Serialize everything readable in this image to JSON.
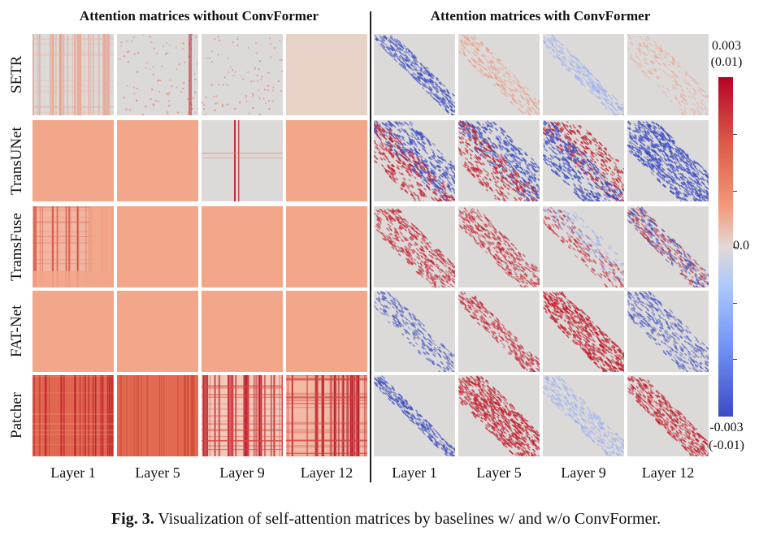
{
  "titles": {
    "left": "Attention matrices without ConvFormer",
    "right": "Attention matrices with ConvFormer"
  },
  "models": [
    "SETR",
    "TransUNet",
    "TramsFuse",
    "FAT-Net",
    "Patcher"
  ],
  "layers": [
    "Layer 1",
    "Layer 5",
    "Layer 9",
    "Layer 12"
  ],
  "colorbar": {
    "max_label": "0.003",
    "max_alt_label": "(0.01)",
    "mid_label": "0.0",
    "min_label": "-0.003",
    "min_alt_label": "(-0.01)"
  },
  "caption": {
    "label": "Fig. 3.",
    "text": "Visualization of self-attention matrices by baselines w/ and w/o ConvFormer."
  },
  "colors": {
    "neutral": "#dcdad9",
    "salmon": "#f2a68a",
    "red": "#c1202e",
    "blue": "#3b4cc0"
  }
}
